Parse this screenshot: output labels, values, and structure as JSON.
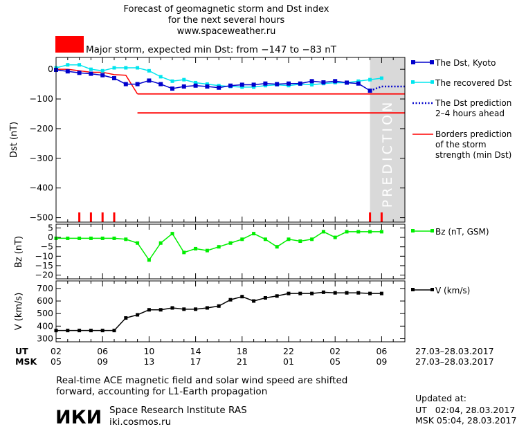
{
  "header": {
    "title_lines": [
      "Forecast of geomagnetic storm and Dst index",
      "for the next several hours",
      "www.spaceweather.ru"
    ],
    "storm_label": "Major storm, expected min Dst: from −147 to −83 nT",
    "storm_color": "#ff0000"
  },
  "legend": {
    "dst_kyoto": "The Dst, Kyoto",
    "dst_recovered": "The recovered Dst",
    "dst_prediction": [
      "The Dst prediction",
      "2–4 hours ahead"
    ],
    "borders": [
      "Borders prediction",
      "of the storm",
      "strength (min Dst)"
    ],
    "bz": "Bz (nT, GSM)",
    "v": "V (km/s)"
  },
  "prediction_label": "PREDICTION",
  "time_axis": {
    "ut_label": "UT",
    "msk_label": "MSK",
    "ut_ticks": [
      "02",
      "06",
      "10",
      "14",
      "18",
      "22",
      "02",
      "06"
    ],
    "msk_ticks": [
      "05",
      "09",
      "13",
      "17",
      "21",
      "01",
      "05",
      "09"
    ],
    "date_range": "27.03–28.03.2017"
  },
  "colors": {
    "dst_kyoto": "#0000cc",
    "dst_recovered": "#00e5ee",
    "borders": "#ff0000",
    "bz": "#00ee00",
    "v": "#000000",
    "prediction_band": "#d9d9d9",
    "storm_ticks": "#ff0000"
  },
  "chart_data": [
    {
      "type": "line",
      "ylabel": "Dst (nT)",
      "ylim": [
        -515,
        40
      ],
      "yticks": [
        0,
        -100,
        -200,
        -300,
        -400,
        -500
      ],
      "xlim": [
        2,
        32
      ],
      "prediction_band": [
        29,
        32
      ],
      "series": [
        {
          "name": "The Dst, Kyoto",
          "x": [
            2,
            3,
            4,
            5,
            6,
            7,
            8,
            9,
            10,
            11,
            12,
            13,
            14,
            15,
            16,
            17,
            18,
            19,
            20,
            21,
            22,
            23,
            24,
            25,
            26,
            27,
            28,
            29
          ],
          "y": [
            -2,
            -7,
            -12,
            -15,
            -20,
            -30,
            -50,
            -50,
            -38,
            -50,
            -65,
            -58,
            -55,
            -58,
            -62,
            -55,
            -52,
            -52,
            -48,
            -50,
            -48,
            -48,
            -40,
            -44,
            -40,
            -45,
            -48,
            -72
          ]
        },
        {
          "name": "The recovered Dst",
          "x": [
            2,
            3,
            4,
            5,
            6,
            7,
            8,
            9,
            10,
            11,
            12,
            13,
            14,
            15,
            16,
            17,
            18,
            19,
            20,
            21,
            22,
            23,
            24,
            25,
            26,
            27,
            28,
            29,
            30
          ],
          "y": [
            5,
            15,
            15,
            0,
            -5,
            5,
            5,
            5,
            -5,
            -25,
            -40,
            -35,
            -45,
            -50,
            -55,
            -58,
            -60,
            -60,
            -55,
            -52,
            -55,
            -50,
            -52,
            -48,
            -45,
            -45,
            -40,
            -35,
            -30
          ]
        },
        {
          "name": "The Dst prediction",
          "x": [
            29,
            30,
            31,
            32
          ],
          "y": [
            -72,
            -58,
            -58,
            -58
          ]
        },
        {
          "name": "Borders prediction of the storm strength (min Dst)",
          "x": [
            9,
            32
          ],
          "y": [
            -83,
            -83
          ],
          "y2": [
            -147,
            -147
          ]
        },
        {
          "x": [
            2,
            3,
            4,
            5,
            6,
            7,
            8,
            9
          ],
          "y": [
            0,
            0,
            -5,
            -10,
            -10,
            -18,
            -20,
            -83
          ]
        }
      ],
      "storm_ticks_x": [
        4,
        5,
        6,
        7,
        29,
        30
      ]
    },
    {
      "type": "line",
      "ylabel": "Bz (nT)",
      "ylim": [
        -22,
        7
      ],
      "yticks": [
        5,
        0,
        -5,
        -10,
        -15,
        -20
      ],
      "xlim": [
        2,
        32
      ],
      "series": [
        {
          "name": "Bz (nT, GSM)",
          "x": [
            2,
            3,
            4,
            5,
            6,
            7,
            8,
            9,
            10,
            11,
            12,
            13,
            14,
            15,
            16,
            17,
            18,
            19,
            20,
            21,
            22,
            23,
            24,
            25,
            26,
            27,
            28,
            29,
            30
          ],
          "y": [
            -0.5,
            -0.5,
            -0.5,
            -0.5,
            -0.5,
            -0.5,
            -1,
            -3,
            -12,
            -3,
            2,
            -8,
            -6,
            -7,
            -5,
            -3,
            -1,
            2,
            -1,
            -5,
            -1,
            -2,
            -1,
            3,
            0,
            3,
            3,
            3,
            3
          ]
        }
      ]
    },
    {
      "type": "line",
      "ylabel": "V (km/s)",
      "ylim": [
        275,
        760
      ],
      "yticks": [
        700,
        600,
        500,
        400,
        300
      ],
      "xlim": [
        2,
        32
      ],
      "series": [
        {
          "name": "V (km/s)",
          "x": [
            2,
            3,
            4,
            5,
            6,
            7,
            8,
            9,
            10,
            11,
            12,
            13,
            14,
            15,
            16,
            17,
            18,
            19,
            20,
            21,
            22,
            23,
            24,
            25,
            26,
            27,
            28,
            29,
            30
          ],
          "y": [
            365,
            365,
            365,
            365,
            365,
            365,
            465,
            490,
            530,
            530,
            545,
            535,
            535,
            545,
            560,
            610,
            635,
            600,
            625,
            640,
            660,
            660,
            660,
            670,
            665,
            665,
            665,
            660,
            660
          ]
        }
      ]
    }
  ],
  "footer": {
    "note_lines": [
      "Real-time ACE magnetic field and solar wind speed are shifted",
      "forward, accounting for L1-Earth propagation"
    ],
    "logo_text": "ИКИ",
    "institute": "Space Research Institute RAS",
    "site": "iki.cosmos.ru",
    "updated_label": "Updated at:",
    "updated_ut": "UT   02:04, 28.03.2017",
    "updated_msk": "MSK 05:04, 28.03.2017"
  }
}
